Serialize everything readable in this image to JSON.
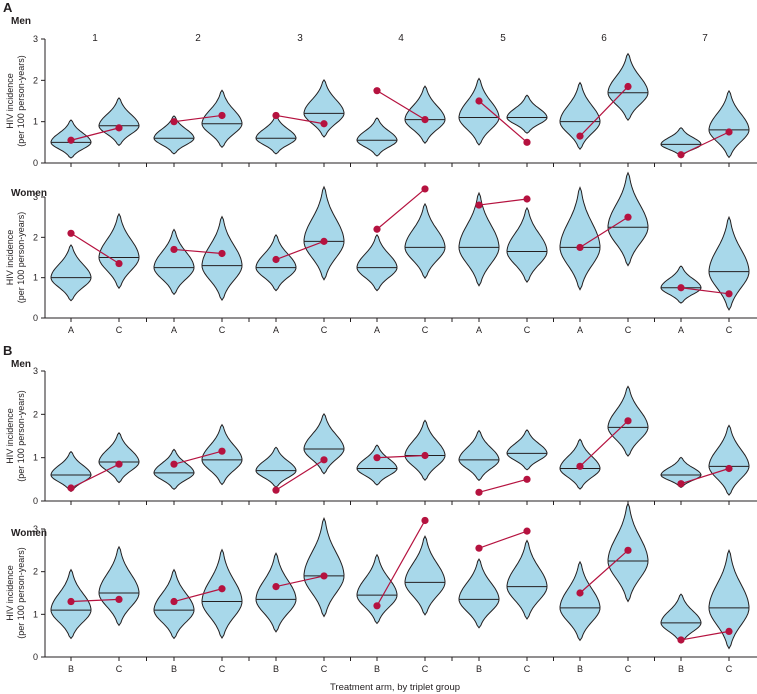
{
  "figure": {
    "x_axis_title": "Treatment arm, by triplet group",
    "y_axis_title_line1": "HIV incidence",
    "y_axis_title_line2": "(per 100 person-years)",
    "groups": [
      "1",
      "2",
      "3",
      "4",
      "5",
      "6",
      "7"
    ],
    "colors": {
      "violin_fill": "#a8d8ea",
      "violin_stroke": "#231f20",
      "observed": "#b5123f",
      "axis": "#231f20"
    }
  },
  "chart_data": [
    {
      "type": "violin",
      "panel": "A",
      "subpanel": "Men",
      "arms": [
        "A",
        "C"
      ],
      "ylim": [
        0,
        3
      ],
      "yticks": [
        0,
        1,
        2,
        3
      ],
      "series": [
        {
          "name": "Simulated distribution median",
          "values": [
            [
              0.5,
              0.9
            ],
            [
              0.6,
              0.95
            ],
            [
              0.6,
              1.2
            ],
            [
              0.55,
              1.05
            ],
            [
              1.1,
              1.1
            ],
            [
              1.0,
              1.7
            ],
            [
              0.45,
              0.8
            ]
          ]
        },
        {
          "name": "Observed incidence",
          "values": [
            [
              0.55,
              0.85
            ],
            [
              1.0,
              1.15
            ],
            [
              1.15,
              0.95
            ],
            [
              1.75,
              1.05
            ],
            [
              1.5,
              0.5
            ],
            [
              0.65,
              1.85
            ],
            [
              0.2,
              0.75
            ]
          ]
        }
      ],
      "spread": [
        [
          0.2,
          0.25
        ],
        [
          0.2,
          0.3
        ],
        [
          0.2,
          0.3
        ],
        [
          0.2,
          0.3
        ],
        [
          0.35,
          0.2
        ],
        [
          0.35,
          0.35
        ],
        [
          0.15,
          0.35
        ]
      ]
    },
    {
      "type": "violin",
      "panel": "A",
      "subpanel": "Women",
      "arms": [
        "A",
        "C"
      ],
      "ylim": [
        0,
        3
      ],
      "yticks": [
        0,
        1,
        2,
        3
      ],
      "series": [
        {
          "name": "Simulated distribution median",
          "values": [
            [
              1.0,
              1.5
            ],
            [
              1.25,
              1.3
            ],
            [
              1.25,
              1.9
            ],
            [
              1.25,
              1.75
            ],
            [
              1.75,
              1.65
            ],
            [
              1.75,
              2.25
            ],
            [
              0.75,
              1.15
            ]
          ]
        },
        {
          "name": "Observed incidence",
          "values": [
            [
              2.1,
              1.35
            ],
            [
              1.7,
              1.6
            ],
            [
              1.45,
              1.9
            ],
            [
              2.2,
              3.2
            ],
            [
              2.8,
              2.95
            ],
            [
              1.75,
              2.5
            ],
            [
              0.75,
              0.6
            ]
          ]
        }
      ],
      "spread": [
        [
          0.3,
          0.4
        ],
        [
          0.35,
          0.45
        ],
        [
          0.3,
          0.5
        ],
        [
          0.3,
          0.4
        ],
        [
          0.5,
          0.4
        ],
        [
          0.55,
          0.5
        ],
        [
          0.2,
          0.5
        ]
      ]
    },
    {
      "type": "violin",
      "panel": "B",
      "subpanel": "Men",
      "arms": [
        "B",
        "C"
      ],
      "ylim": [
        0,
        3
      ],
      "yticks": [
        0,
        1,
        2,
        3
      ],
      "series": [
        {
          "name": "Simulated distribution median",
          "values": [
            [
              0.6,
              0.9
            ],
            [
              0.65,
              0.95
            ],
            [
              0.7,
              1.2
            ],
            [
              0.75,
              1.05
            ],
            [
              0.95,
              1.1
            ],
            [
              0.75,
              1.7
            ],
            [
              0.6,
              0.8
            ]
          ]
        },
        {
          "name": "Observed incidence",
          "values": [
            [
              0.3,
              0.85
            ],
            [
              0.85,
              1.15
            ],
            [
              0.25,
              0.95
            ],
            [
              1.0,
              1.05
            ],
            [
              0.2,
              0.5
            ],
            [
              0.8,
              1.85
            ],
            [
              0.4,
              0.75
            ]
          ]
        }
      ],
      "spread": [
        [
          0.2,
          0.25
        ],
        [
          0.2,
          0.3
        ],
        [
          0.2,
          0.3
        ],
        [
          0.2,
          0.3
        ],
        [
          0.25,
          0.2
        ],
        [
          0.25,
          0.35
        ],
        [
          0.15,
          0.35
        ]
      ]
    },
    {
      "type": "violin",
      "panel": "B",
      "subpanel": "Women",
      "arms": [
        "B",
        "C"
      ],
      "ylim": [
        0,
        3
      ],
      "yticks": [
        0,
        1,
        2,
        3
      ],
      "series": [
        {
          "name": "Simulated distribution median",
          "values": [
            [
              1.1,
              1.5
            ],
            [
              1.1,
              1.3
            ],
            [
              1.35,
              1.9
            ],
            [
              1.45,
              1.75
            ],
            [
              1.35,
              1.65
            ],
            [
              1.15,
              2.25
            ],
            [
              0.8,
              1.15
            ]
          ]
        },
        {
          "name": "Observed incidence",
          "values": [
            [
              1.3,
              1.35
            ],
            [
              1.3,
              1.6
            ],
            [
              1.65,
              1.9
            ],
            [
              1.2,
              3.2
            ],
            [
              2.55,
              2.95
            ],
            [
              1.5,
              2.5
            ],
            [
              0.4,
              0.6
            ]
          ]
        }
      ],
      "spread": [
        [
          0.35,
          0.4
        ],
        [
          0.35,
          0.45
        ],
        [
          0.4,
          0.5
        ],
        [
          0.35,
          0.4
        ],
        [
          0.35,
          0.4
        ],
        [
          0.4,
          0.5
        ],
        [
          0.25,
          0.5
        ]
      ]
    }
  ]
}
